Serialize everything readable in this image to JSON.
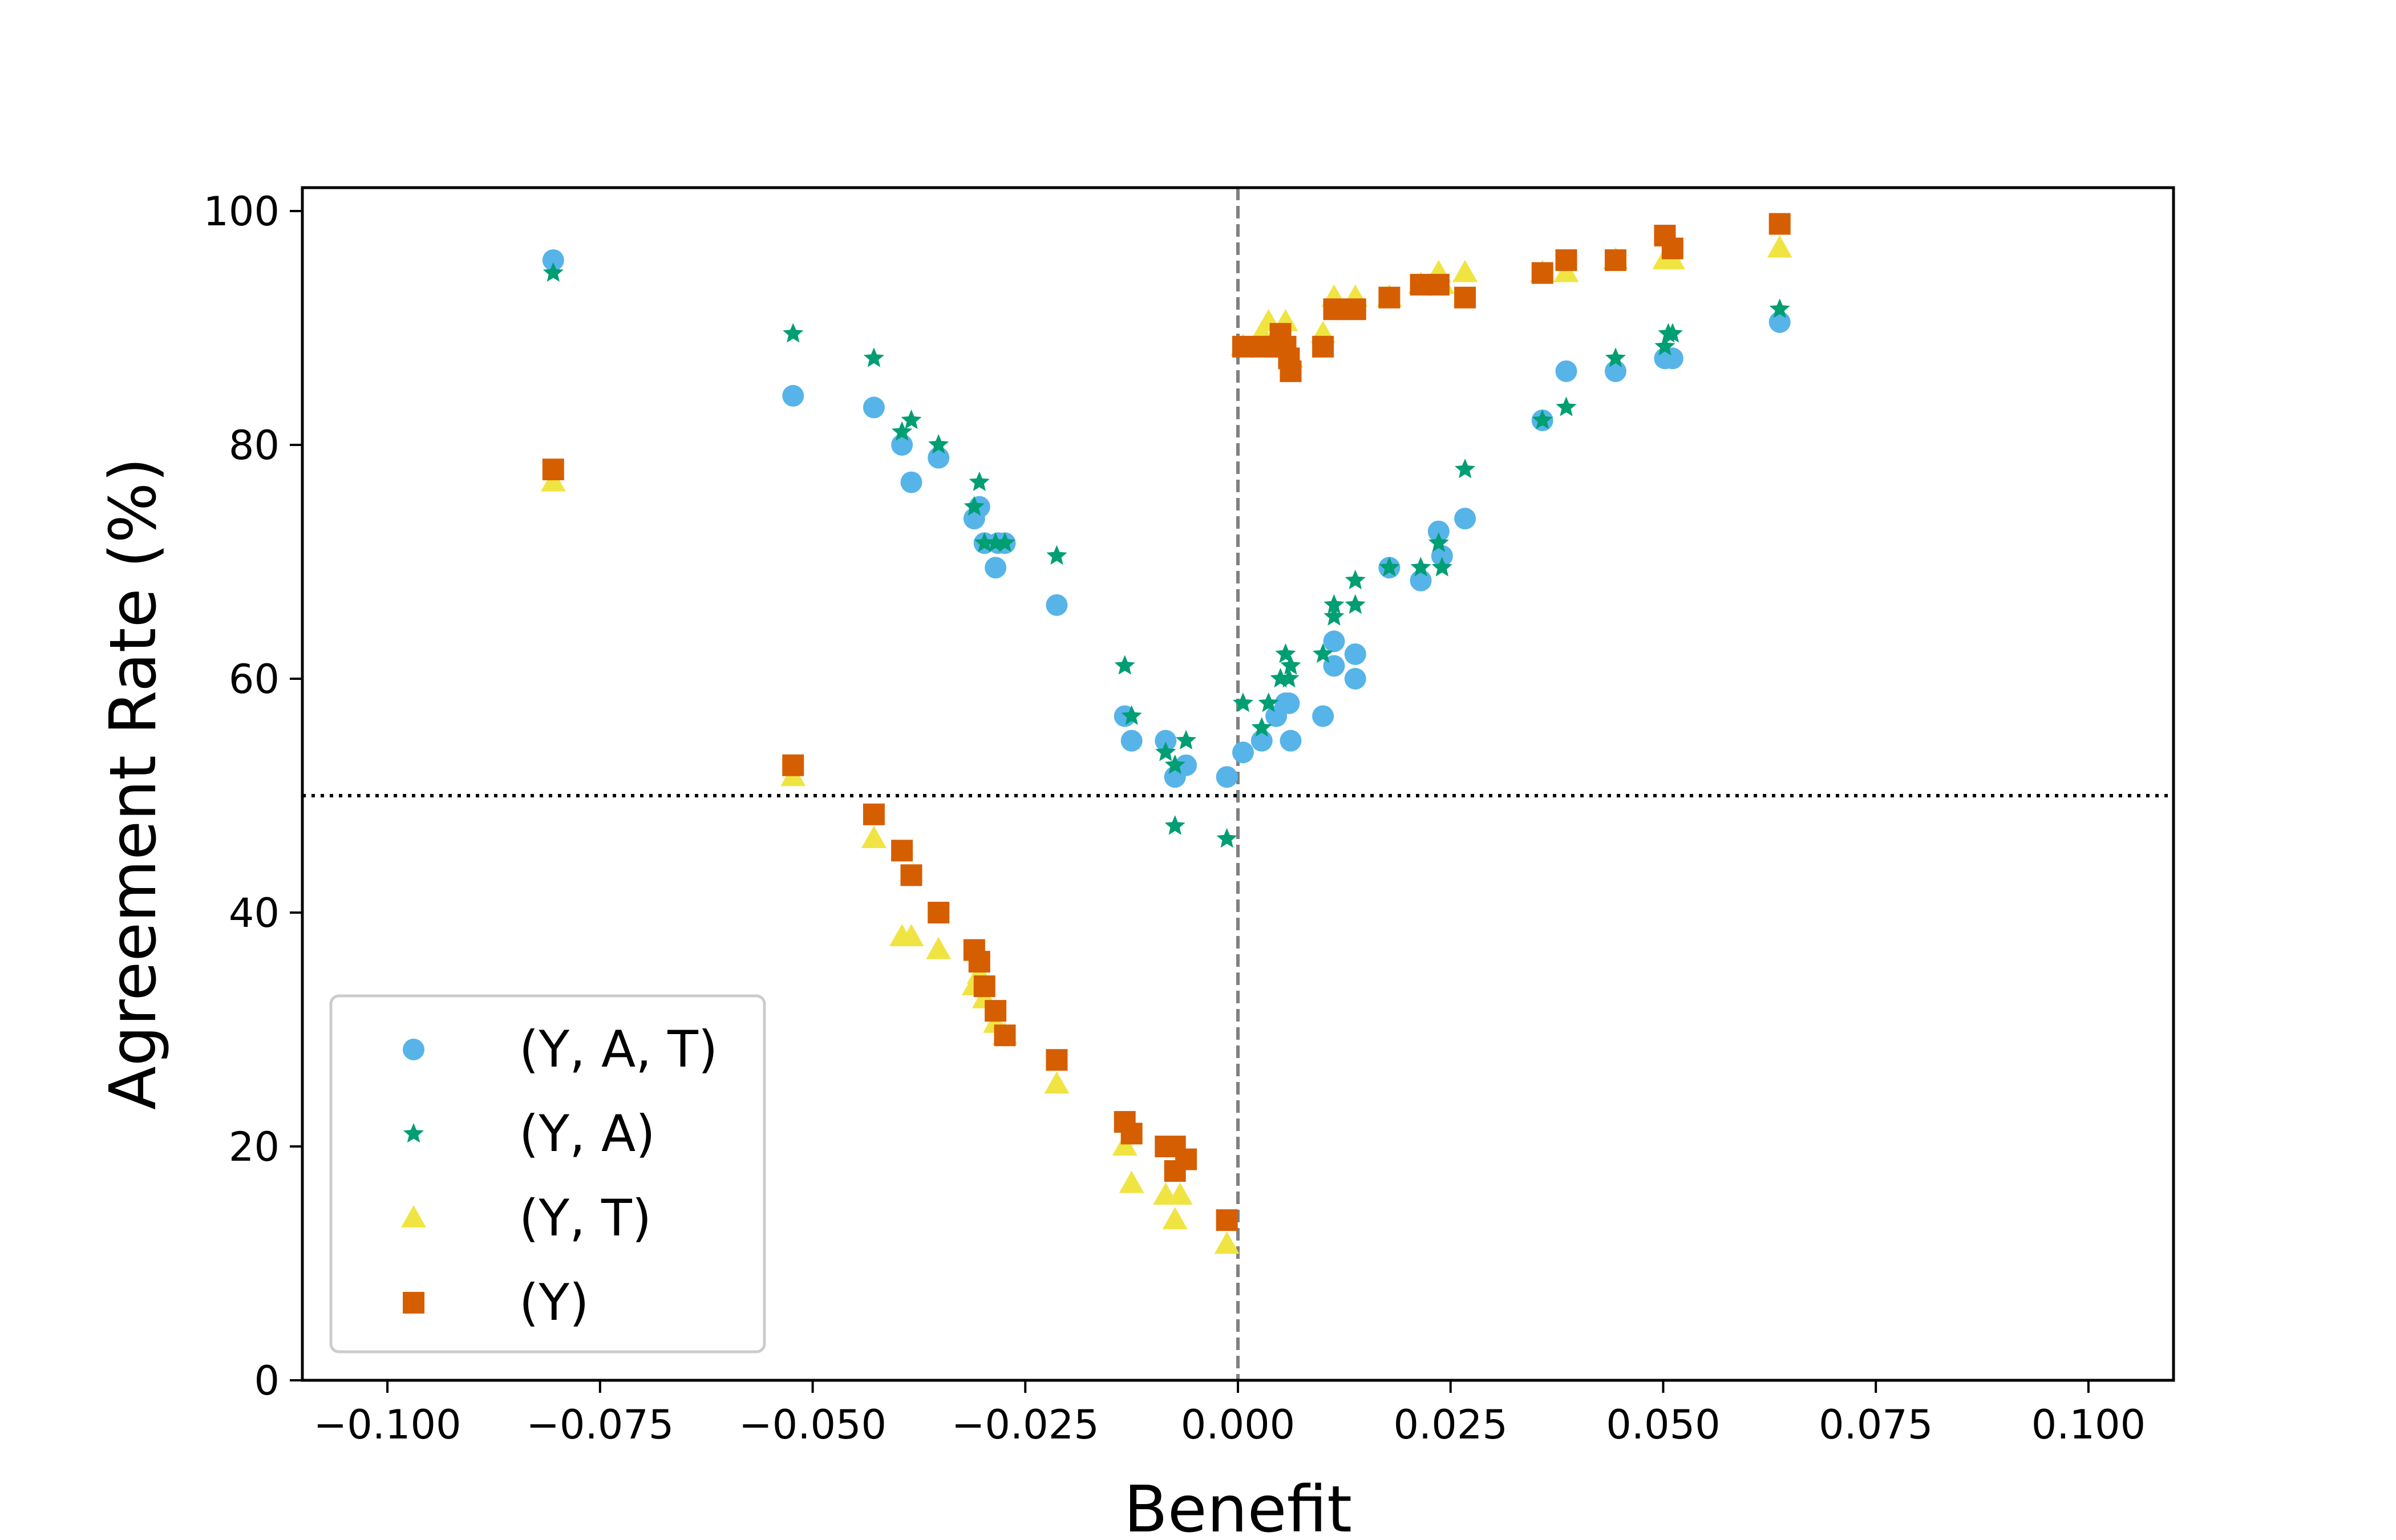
{
  "chart_data": {
    "type": "scatter",
    "title": "",
    "xlabel": "Benefit",
    "ylabel": "Agreement Rate (%)",
    "xlim": [
      -0.11,
      0.11
    ],
    "ylim": [
      0,
      102
    ],
    "xticks": [
      -0.1,
      -0.075,
      -0.05,
      -0.025,
      0.0,
      0.025,
      0.05,
      0.075,
      0.1
    ],
    "xtick_labels": [
      "−0.100",
      "−0.075",
      "−0.050",
      "−0.025",
      "0.000",
      "0.025",
      "0.050",
      "0.075",
      "0.100"
    ],
    "yticks": [
      0,
      20,
      40,
      60,
      80,
      100
    ],
    "ytick_labels": [
      "0",
      "20",
      "40",
      "60",
      "80",
      "100"
    ],
    "grid": false,
    "legend_position": "lower-left",
    "reference_lines": [
      {
        "orientation": "vertical",
        "value": 0.0,
        "style": "dashed",
        "color": "#808080"
      },
      {
        "orientation": "horizontal",
        "value": 50,
        "style": "dotted",
        "color": "#000000"
      }
    ],
    "series": [
      {
        "name": "(Y, A, T)",
        "marker": "circle",
        "color": "#56B4E9",
        "points": [
          [
            -0.0805,
            95.8
          ],
          [
            -0.0523,
            84.2
          ],
          [
            -0.0428,
            83.2
          ],
          [
            -0.0395,
            80.0
          ],
          [
            -0.0384,
            76.8
          ],
          [
            -0.0352,
            78.9
          ],
          [
            -0.031,
            73.7
          ],
          [
            -0.0304,
            74.7
          ],
          [
            -0.0298,
            71.6
          ],
          [
            -0.0285,
            69.5
          ],
          [
            -0.0282,
            71.6
          ],
          [
            -0.0274,
            71.6
          ],
          [
            -0.0213,
            66.3
          ],
          [
            -0.0133,
            56.8
          ],
          [
            -0.0125,
            54.7
          ],
          [
            -0.0085,
            54.7
          ],
          [
            -0.0074,
            51.6
          ],
          [
            -0.0061,
            52.6
          ],
          [
            -0.0013,
            51.6
          ],
          [
            0.0006,
            53.7
          ],
          [
            0.0028,
            54.7
          ],
          [
            0.0045,
            56.8
          ],
          [
            0.0056,
            57.9
          ],
          [
            0.0062,
            54.7
          ],
          [
            0.006,
            57.9
          ],
          [
            0.01,
            56.8
          ],
          [
            0.0113,
            61.1
          ],
          [
            0.0113,
            63.2
          ],
          [
            0.0138,
            60.0
          ],
          [
            0.0138,
            62.1
          ],
          [
            0.0178,
            69.5
          ],
          [
            0.0215,
            68.4
          ],
          [
            0.0236,
            72.6
          ],
          [
            0.024,
            70.5
          ],
          [
            0.0267,
            73.7
          ],
          [
            0.0358,
            82.1
          ],
          [
            0.0386,
            86.3
          ],
          [
            0.0444,
            86.3
          ],
          [
            0.0502,
            87.4
          ],
          [
            0.0511,
            87.4
          ],
          [
            0.0637,
            90.5
          ]
        ]
      },
      {
        "name": "(Y, A)",
        "marker": "star",
        "color": "#009E73",
        "points": [
          [
            -0.0805,
            94.7
          ],
          [
            -0.0523,
            89.5
          ],
          [
            -0.0428,
            87.4
          ],
          [
            -0.0395,
            81.1
          ],
          [
            -0.0384,
            82.1
          ],
          [
            -0.0352,
            80.0
          ],
          [
            -0.031,
            74.7
          ],
          [
            -0.0304,
            76.8
          ],
          [
            -0.0298,
            71.6
          ],
          [
            -0.0285,
            71.6
          ],
          [
            -0.0274,
            71.6
          ],
          [
            -0.0213,
            70.5
          ],
          [
            -0.0133,
            61.1
          ],
          [
            -0.0125,
            56.8
          ],
          [
            -0.0085,
            53.7
          ],
          [
            -0.0074,
            52.6
          ],
          [
            -0.0074,
            47.4
          ],
          [
            -0.0061,
            54.7
          ],
          [
            -0.0013,
            46.3
          ],
          [
            0.0006,
            57.9
          ],
          [
            0.0028,
            55.8
          ],
          [
            0.0036,
            57.9
          ],
          [
            0.005,
            60.0
          ],
          [
            0.0056,
            62.1
          ],
          [
            0.006,
            60.0
          ],
          [
            0.0062,
            61.1
          ],
          [
            0.01,
            62.1
          ],
          [
            0.0113,
            65.3
          ],
          [
            0.0113,
            66.3
          ],
          [
            0.0138,
            66.3
          ],
          [
            0.0138,
            68.4
          ],
          [
            0.0178,
            69.5
          ],
          [
            0.0215,
            69.5
          ],
          [
            0.0236,
            71.6
          ],
          [
            0.024,
            69.5
          ],
          [
            0.0267,
            77.9
          ],
          [
            0.0358,
            82.1
          ],
          [
            0.0386,
            83.2
          ],
          [
            0.0444,
            87.4
          ],
          [
            0.0502,
            88.4
          ],
          [
            0.0506,
            89.5
          ],
          [
            0.0511,
            89.5
          ],
          [
            0.0637,
            91.6
          ]
        ]
      },
      {
        "name": "(Y, T)",
        "marker": "triangle",
        "color": "#F0E442",
        "points": [
          [
            -0.0805,
            76.8
          ],
          [
            -0.0523,
            51.6
          ],
          [
            -0.0428,
            46.3
          ],
          [
            -0.0395,
            37.9
          ],
          [
            -0.0384,
            37.9
          ],
          [
            -0.0352,
            36.8
          ],
          [
            -0.031,
            33.7
          ],
          [
            -0.0304,
            34.7
          ],
          [
            -0.0298,
            32.6
          ],
          [
            -0.0285,
            30.5
          ],
          [
            -0.0274,
            29.5
          ],
          [
            -0.0213,
            25.3
          ],
          [
            -0.0133,
            20.0
          ],
          [
            -0.0125,
            16.8
          ],
          [
            -0.0085,
            15.8
          ],
          [
            -0.0074,
            13.7
          ],
          [
            -0.0068,
            15.8
          ],
          [
            -0.0013,
            11.6
          ],
          [
            0.0006,
            88.4
          ],
          [
            0.0028,
            89.5
          ],
          [
            0.0036,
            90.5
          ],
          [
            0.005,
            88.4
          ],
          [
            0.0056,
            90.5
          ],
          [
            0.0062,
            87.4
          ],
          [
            0.01,
            89.5
          ],
          [
            0.0113,
            92.6
          ],
          [
            0.0138,
            92.6
          ],
          [
            0.0178,
            92.6
          ],
          [
            0.0215,
            93.7
          ],
          [
            0.0236,
            94.7
          ],
          [
            0.024,
            93.7
          ],
          [
            0.0267,
            94.7
          ],
          [
            0.0358,
            94.7
          ],
          [
            0.0386,
            94.7
          ],
          [
            0.0444,
            95.8
          ],
          [
            0.0502,
            95.8
          ],
          [
            0.0511,
            95.8
          ],
          [
            0.0637,
            96.8
          ]
        ]
      },
      {
        "name": "(Y)",
        "marker": "square",
        "color": "#D55E00",
        "points": [
          [
            -0.0805,
            77.9
          ],
          [
            -0.0523,
            52.6
          ],
          [
            -0.0428,
            48.4
          ],
          [
            -0.0395,
            45.3
          ],
          [
            -0.0384,
            43.2
          ],
          [
            -0.0352,
            40.0
          ],
          [
            -0.031,
            36.8
          ],
          [
            -0.0304,
            35.8
          ],
          [
            -0.0298,
            33.7
          ],
          [
            -0.0285,
            31.6
          ],
          [
            -0.0274,
            29.5
          ],
          [
            -0.0213,
            27.4
          ],
          [
            -0.0133,
            22.1
          ],
          [
            -0.0125,
            21.1
          ],
          [
            -0.0085,
            20.0
          ],
          [
            -0.0074,
            20.0
          ],
          [
            -0.0074,
            17.9
          ],
          [
            -0.0061,
            18.9
          ],
          [
            -0.0013,
            13.7
          ],
          [
            0.0006,
            88.4
          ],
          [
            0.0028,
            88.4
          ],
          [
            0.0045,
            88.4
          ],
          [
            0.005,
            89.5
          ],
          [
            0.0056,
            88.4
          ],
          [
            0.006,
            87.4
          ],
          [
            0.0062,
            86.3
          ],
          [
            0.01,
            88.4
          ],
          [
            0.0113,
            91.6
          ],
          [
            0.0138,
            91.6
          ],
          [
            0.0178,
            92.6
          ],
          [
            0.0215,
            93.7
          ],
          [
            0.0236,
            93.7
          ],
          [
            0.0267,
            92.6
          ],
          [
            0.0358,
            94.7
          ],
          [
            0.0386,
            95.8
          ],
          [
            0.0444,
            95.8
          ],
          [
            0.0502,
            97.9
          ],
          [
            0.0511,
            96.8
          ],
          [
            0.0637,
            98.9
          ]
        ]
      }
    ]
  }
}
